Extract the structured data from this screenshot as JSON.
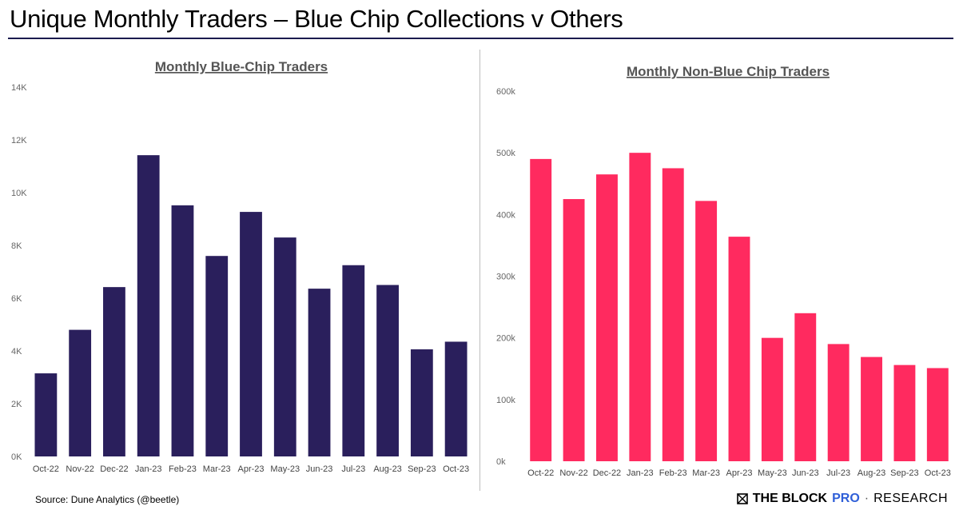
{
  "header": {
    "title": "Unique Monthly Traders – Blue Chip Collections v Others"
  },
  "footer": {
    "source": "Source: Dune Analytics (@beetle)",
    "brand_name": "THE BLOCK",
    "brand_pro": "PRO",
    "brand_sep": "·",
    "brand_research": "RESEARCH"
  },
  "colors": {
    "blue_chip_bar": "#2a1f5c",
    "non_blue_chip_bar": "#ff2a5f"
  },
  "chart_data": [
    {
      "type": "bar",
      "title": "Monthly Blue-Chip Traders",
      "categories": [
        "Oct-22",
        "Nov-22",
        "Dec-22",
        "Jan-23",
        "Feb-23",
        "Mar-23",
        "Apr-23",
        "May-23",
        "Jun-23",
        "Jul-23",
        "Aug-23",
        "Sep-23",
        "Oct-23"
      ],
      "values": [
        3150,
        4800,
        6420,
        11420,
        9520,
        7600,
        9270,
        8300,
        6360,
        7250,
        6500,
        4060,
        4350
      ],
      "ylim": [
        0,
        14000
      ],
      "yticks": [
        0,
        2000,
        4000,
        6000,
        8000,
        10000,
        12000,
        14000
      ],
      "ytick_labels": [
        "0K",
        "2K",
        "4K",
        "6K",
        "8K",
        "10K",
        "12K",
        "14K"
      ],
      "color": "#2a1f5c",
      "grid": false
    },
    {
      "type": "bar",
      "title": "Monthly Non-Blue Chip Traders",
      "categories": [
        "Oct-22",
        "Nov-22",
        "Dec-22",
        "Jan-23",
        "Feb-23",
        "Mar-23",
        "Apr-23",
        "May-23",
        "Jun-23",
        "Jul-23",
        "Aug-23",
        "Sep-23",
        "Oct-23"
      ],
      "values": [
        490000,
        425000,
        465000,
        500000,
        475000,
        422000,
        364000,
        200000,
        240000,
        190000,
        169000,
        156000,
        151000
      ],
      "ylim": [
        0,
        600000
      ],
      "yticks": [
        0,
        100000,
        200000,
        300000,
        400000,
        500000,
        600000
      ],
      "ytick_labels": [
        "0k",
        "100k",
        "200k",
        "300k",
        "400k",
        "500k",
        "600k"
      ],
      "color": "#ff2a5f",
      "grid": false
    }
  ]
}
